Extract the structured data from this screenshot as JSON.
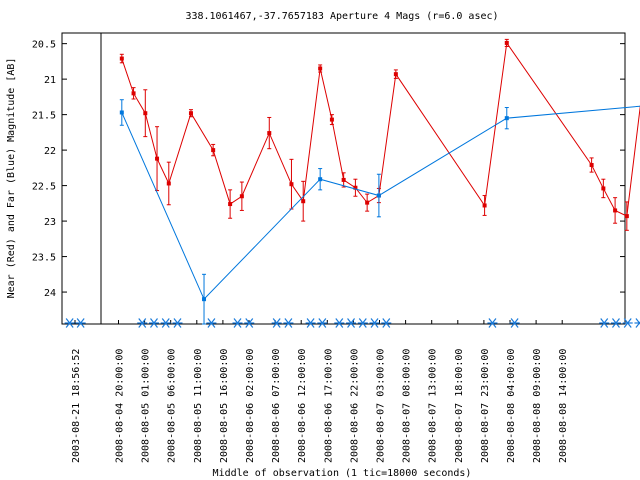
{
  "chart_data": {
    "type": "line",
    "title": "338.1061467,-37.7657183   Aperture 4 Mags (r=6.0 asec)",
    "xlabel": "Middle of observation (1 tic=18000 seconds)",
    "ylabel": "Near (Red) and Far (Blue) Magnitude [AB]",
    "ylim": [
      24.45,
      20.35
    ],
    "y_inverted": true,
    "y_ticks": [
      "20.5",
      "21",
      "21.5",
      "22",
      "22.5",
      "23",
      "23.5",
      "24"
    ],
    "x_tick_labels": [
      "2003-08-21 18:56:52",
      "2008-08-04 20:00:00",
      "2008-08-05 01:00:00",
      "2008-08-05 06:00:00",
      "2008-08-05 11:00:00",
      "2008-08-05 16:00:00",
      "2008-08-06 02:00:00",
      "2008-08-06 07:00:00",
      "2008-08-06 12:00:00",
      "2008-08-06 17:00:00",
      "2008-08-06 22:00:00",
      "2008-08-07 03:00:00",
      "2008-08-07 08:00:00",
      "2008-08-07 13:00:00",
      "2008-08-07 18:00:00",
      "2008-08-07 23:00:00",
      "2008-08-08 04:00:00",
      "2008-08-08 09:00:00",
      "2008-08-08 14:00:00"
    ],
    "series": [
      {
        "color": "#dd0000",
        "points": [
          {
            "x": "2008-08-04 20:38",
            "y": 20.71,
            "err": 0.06
          },
          {
            "x": "2008-08-04 22:53",
            "y": 21.2,
            "err": 0.08
          },
          {
            "x": "2008-08-05 01:08",
            "y": 21.48,
            "err": 0.33
          },
          {
            "x": "2008-08-05 03:23",
            "y": 22.12,
            "err": 0.45
          },
          {
            "x": "2008-08-05 05:38",
            "y": 22.47,
            "err": 0.3
          },
          {
            "x": "2008-08-05 09:53",
            "y": 21.48,
            "err": 0.05
          },
          {
            "x": "2008-08-05 14:08",
            "y": 22.0,
            "err": 0.08
          },
          {
            "x": "2008-08-05 17:23",
            "y": 22.76,
            "err": 0.2
          },
          {
            "x": "2008-08-05 19:38",
            "y": 22.65,
            "err": 0.2
          },
          {
            "x": "2008-08-06 00:53",
            "y": 21.76,
            "err": 0.22
          },
          {
            "x": "2008-08-06 05:08",
            "y": 22.48,
            "err": 0.35
          },
          {
            "x": "2008-08-06 07:23",
            "y": 22.72,
            "err": 0.28
          },
          {
            "x": "2008-08-06 10:38",
            "y": 20.85,
            "err": 0.05
          },
          {
            "x": "2008-08-06 12:53",
            "y": 21.57,
            "err": 0.07
          },
          {
            "x": "2008-08-06 15:08",
            "y": 22.42,
            "err": 0.1
          },
          {
            "x": "2008-08-06 17:23",
            "y": 22.53,
            "err": 0.12
          },
          {
            "x": "2008-08-06 19:38",
            "y": 22.74,
            "err": 0.12
          },
          {
            "x": "2008-08-06 21:53",
            "y": 22.64,
            "err": 0.1
          },
          {
            "x": "2008-08-07 01:08",
            "y": 20.93,
            "err": 0.06
          },
          {
            "x": "2008-08-07 18:08",
            "y": 22.78,
            "err": 0.14
          },
          {
            "x": "2008-08-07 22:23",
            "y": 20.49,
            "err": 0.05
          },
          {
            "x": "2008-08-08 14:38",
            "y": 22.21,
            "err": 0.1
          },
          {
            "x": "2008-08-08 16:53",
            "y": 22.54,
            "err": 0.13
          },
          {
            "x": "2008-08-08 19:08",
            "y": 22.85,
            "err": 0.18
          },
          {
            "x": "2008-08-08 21:23",
            "y": 22.93,
            "err": 0.2
          },
          {
            "x": "2008-08-09 01:38",
            "y": 20.38,
            "err": 0.05
          }
        ]
      },
      {
        "color": "#0077dd",
        "points": [
          {
            "x": "2008-08-04 20:38",
            "y": 21.47,
            "err": 0.18
          },
          {
            "x": "2008-08-05 12:23",
            "y": 24.1,
            "err": 0.35
          },
          {
            "x": "2008-08-06 10:38",
            "y": 22.41,
            "err": 0.15
          },
          {
            "x": "2008-08-06 21:53",
            "y": 22.64,
            "err": 0.3
          },
          {
            "x": "2008-08-07 22:23",
            "y": 21.55,
            "err": 0.15
          },
          {
            "x": "2008-08-09 01:38",
            "y": 21.37,
            "err": 0.1
          }
        ]
      }
    ],
    "observation_markers": [
      "2003-08-21 16:30",
      "2003-08-21 21:30",
      "2008-08-05 00:33",
      "2008-08-05 02:48",
      "2008-08-05 05:03",
      "2008-08-05 07:18",
      "2008-08-05 13:48",
      "2008-08-05 18:48",
      "2008-08-05 21:03",
      "2008-08-06 02:18",
      "2008-08-06 04:33",
      "2008-08-06 08:48",
      "2008-08-06 11:03",
      "2008-08-06 14:18",
      "2008-08-06 16:33",
      "2008-08-06 18:48",
      "2008-08-06 21:03",
      "2008-08-06 23:18",
      "2008-08-07 19:38",
      "2008-08-07 23:53",
      "2008-08-08 17:03",
      "2008-08-08 19:18",
      "2008-08-08 21:33",
      "2008-08-08 23:48"
    ],
    "grid": false,
    "legend": "none"
  }
}
